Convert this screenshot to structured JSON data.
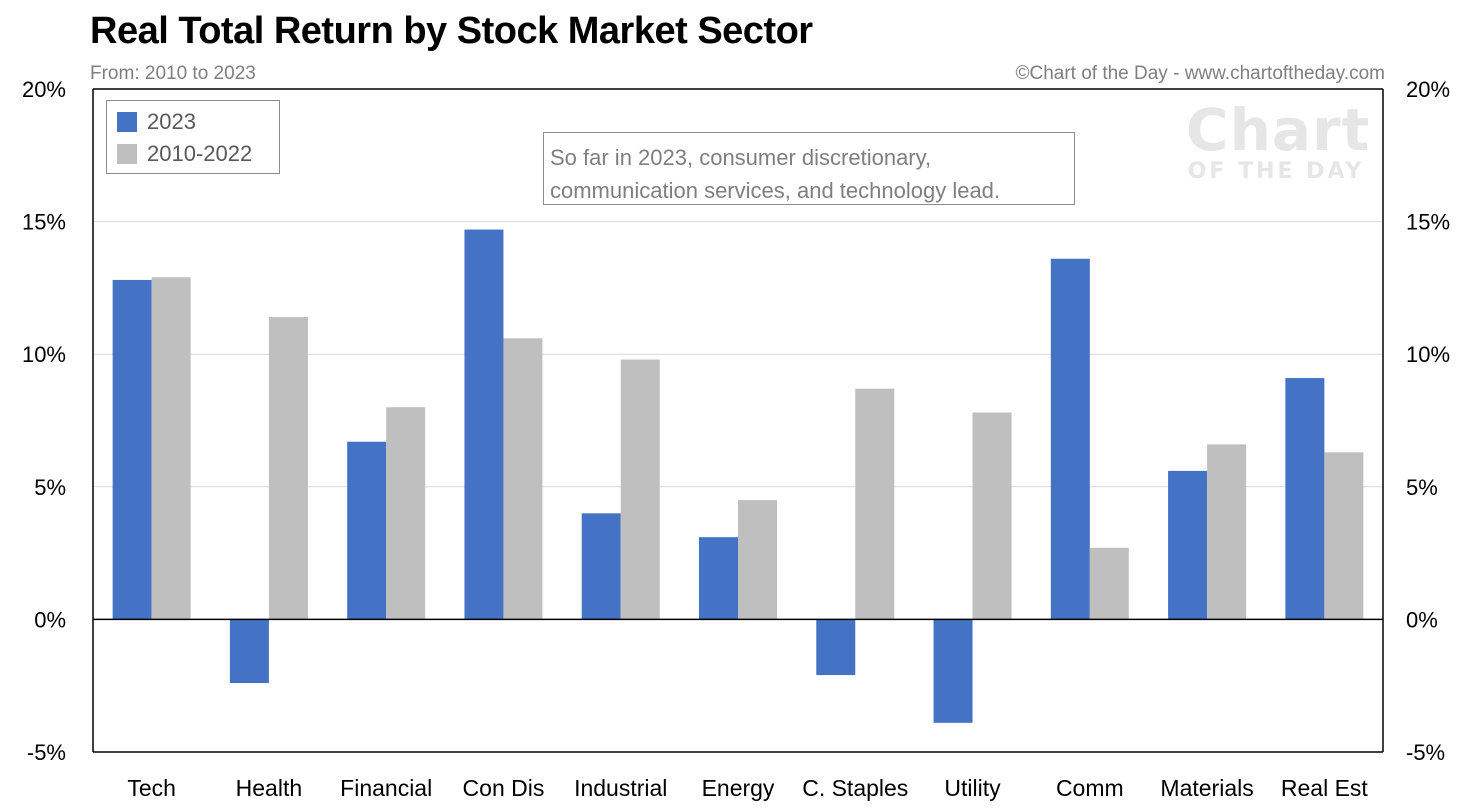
{
  "header": {
    "title": "Real Total Return by Stock Market Sector",
    "subtitle": "From: 2010 to 2023",
    "credit": "©Chart of the Day - www.chartoftheday.com"
  },
  "watermark": {
    "line1": "Chart",
    "line2": "OF THE DAY"
  },
  "annotation": {
    "line1": "So far in 2023, consumer discretionary,",
    "line2": "communication services, and technology lead."
  },
  "colors": {
    "series_2023": "#4472c4",
    "series_2010_2022": "#bfbfbf",
    "axis": "#000000",
    "grid": "#d9d9d9"
  },
  "chart_data": {
    "type": "bar",
    "title": "Real Total Return by Stock Market Sector",
    "subtitle": "From: 2010 to 2023",
    "categories": [
      "Tech",
      "Health",
      "Financial",
      "Con Dis",
      "Industrial",
      "Energy",
      "C. Staples",
      "Utility",
      "Comm",
      "Materials",
      "Real Est"
    ],
    "series": [
      {
        "name": "2023",
        "values": [
          12.8,
          -2.4,
          6.7,
          14.7,
          4.0,
          3.1,
          -2.1,
          -3.9,
          13.6,
          5.6,
          9.1
        ]
      },
      {
        "name": "2010-2022",
        "values": [
          12.9,
          11.4,
          8.0,
          10.6,
          9.8,
          4.5,
          8.7,
          7.8,
          2.7,
          6.6,
          6.3
        ]
      }
    ],
    "ylim": [
      -5,
      20
    ],
    "yticks": [
      -5,
      0,
      5,
      10,
      15,
      20
    ],
    "ytick_labels": [
      "-5%",
      "0%",
      "5%",
      "10%",
      "15%",
      "20%"
    ],
    "xlabel": "",
    "ylabel": "",
    "grid": true,
    "legend": "top-left",
    "secondary_axis": "right"
  }
}
